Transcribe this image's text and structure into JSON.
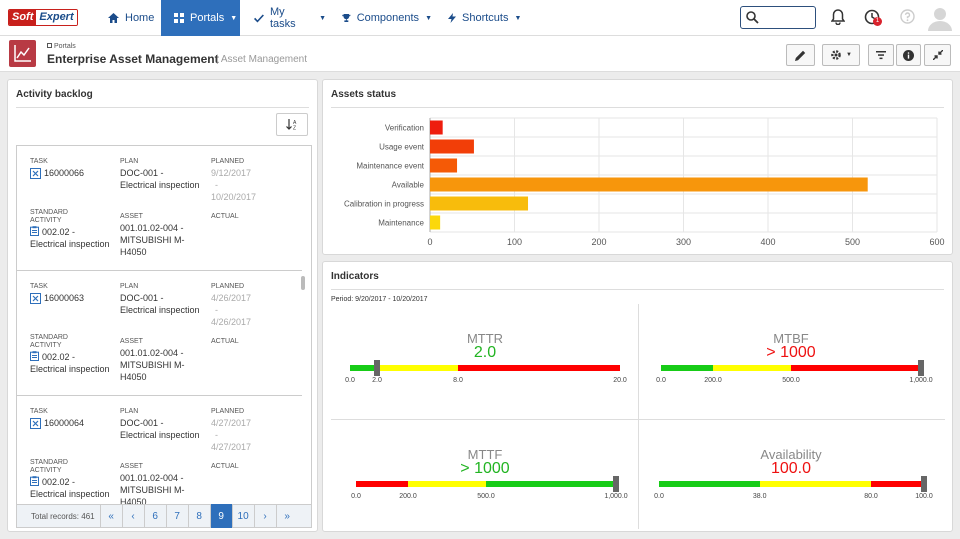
{
  "nav": {
    "logo_a": "Soft",
    "logo_b": "Expert",
    "items": [
      {
        "label": "Home",
        "icon": "home-icon"
      },
      {
        "label": "Portals",
        "icon": "portals-icon"
      },
      {
        "label": "My tasks",
        "icon": "check-icon"
      },
      {
        "label": "Components",
        "icon": "trophy-icon"
      },
      {
        "label": "Shortcuts",
        "icon": "bolt-icon"
      }
    ],
    "notification_count": "1"
  },
  "header": {
    "breadcrumb": "Portals",
    "title": "Enterprise Asset Management",
    "subtitle": "| Asset Management"
  },
  "backlog": {
    "title": "Activity backlog",
    "labels": {
      "task": "TASK",
      "plan": "PLAN",
      "planned": "PLANNED",
      "std": "STANDARD ACTIVITY",
      "asset": "ASSET",
      "actual": "ACTUAL"
    },
    "cards": [
      {
        "task": "16000066",
        "plan": "DOC-001 - Electrical inspection",
        "planned_start": "9/12/2017",
        "planned_end": "10/20/2017",
        "activity": "002.02 - Electrical inspection",
        "asset": "001.01.02-004 - MITSUBISHI M-H4050"
      },
      {
        "task": "16000063",
        "plan": "DOC-001 - Electrical inspection",
        "planned_start": "4/26/2017",
        "planned_end": "4/26/2017",
        "activity": "002.02 - Electrical inspection",
        "asset": "001.01.02-004 - MITSUBISHI M-H4050"
      },
      {
        "task": "16000064",
        "plan": "DOC-001 - Electrical inspection",
        "planned_start": "4/27/2017",
        "planned_end": "4/27/2017",
        "activity": "002.02 - Electrical inspection",
        "asset": "001.01.02-004 - MITSUBISHI M-H4050"
      }
    ],
    "pager": {
      "total": "Total records: 461",
      "first": "«",
      "prev": "‹",
      "pages": [
        "6",
        "7",
        "8",
        "9",
        "10"
      ],
      "current": "9",
      "next": "›",
      "last": "»"
    }
  },
  "assets": {
    "title": "Assets status",
    "chart_data": {
      "type": "bar",
      "orientation": "horizontal",
      "categories": [
        "Verification",
        "Usage event",
        "Maintenance event",
        "Available",
        "Calibration in progress",
        "Maintenance"
      ],
      "values": [
        15,
        52,
        32,
        518,
        116,
        12
      ],
      "colors": [
        "#ee1d0e",
        "#f23e08",
        "#f55a06",
        "#f7960c",
        "#f8bc0c",
        "#fbd80c"
      ],
      "xlim": [
        0,
        600
      ],
      "xticks": [
        "0",
        "100",
        "200",
        "300",
        "400",
        "500",
        "600"
      ],
      "grid": true
    }
  },
  "indicators": {
    "title": "Indicators",
    "period": "Period: 9/20/2017 - 10/20/2017",
    "items": [
      {
        "name": "MTTR",
        "value": "2.0",
        "value_color": "#22b422",
        "ticks": [
          "0.0",
          "2.0",
          "8.0",
          "20.0"
        ],
        "level": 2,
        "segments": [
          {
            "color": "#17cc17",
            "to": 2
          },
          {
            "color": "#ffff00",
            "to": 8
          },
          {
            "color": "#ff0000",
            "to": 20
          }
        ],
        "min": 0,
        "max": 20
      },
      {
        "name": "MTBF",
        "value": "> 1000",
        "value_color": "#ee1111",
        "ticks": [
          "0.0",
          "200.0",
          "500.0",
          "1,000.0"
        ],
        "level": 1000,
        "segments": [
          {
            "color": "#17cc17",
            "to": 200
          },
          {
            "color": "#ffff00",
            "to": 500
          },
          {
            "color": "#ff0000",
            "to": 1000
          }
        ],
        "min": 0,
        "max": 1000
      },
      {
        "name": "MTTF",
        "value": "> 1000",
        "value_color": "#22b422",
        "ticks": [
          "0.0",
          "200.0",
          "500.0",
          "1,000.0"
        ],
        "level": 1000,
        "segments": [
          {
            "color": "#ff0000",
            "to": 200
          },
          {
            "color": "#ffff00",
            "to": 500
          },
          {
            "color": "#17cc17",
            "to": 1000
          }
        ],
        "min": 0,
        "max": 1000
      },
      {
        "name": "Availability",
        "value": "100.0",
        "value_color": "#ee1111",
        "ticks": [
          "0.0",
          "38.0",
          "80.0",
          "100.0"
        ],
        "level": 100,
        "segments": [
          {
            "color": "#17cc17",
            "to": 38
          },
          {
            "color": "#ffff00",
            "to": 80
          },
          {
            "color": "#ff0000",
            "to": 100
          }
        ],
        "min": 0,
        "max": 100
      }
    ]
  }
}
